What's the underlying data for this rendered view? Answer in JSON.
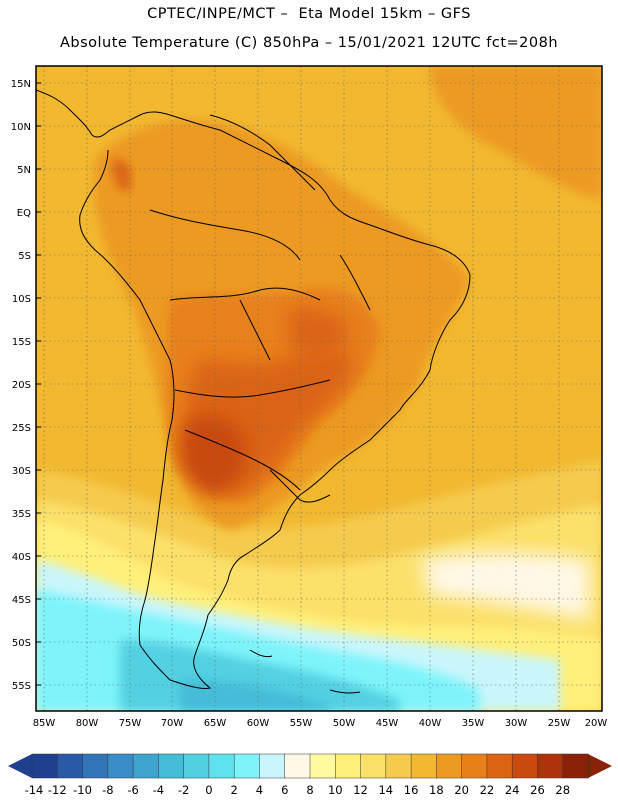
{
  "title": {
    "line1": "CPTEC/INPE/MCT –  Eta Model 15km – GFS",
    "line2": "Absolute Temperature (C) 850hPa – 15/01/2021 12UTC fct=208h"
  },
  "axes": {
    "lat_labels": [
      "15N",
      "10N",
      "5N",
      "EQ",
      "5S",
      "10S",
      "15S",
      "20S",
      "25S",
      "30S",
      "35S",
      "40S",
      "45S",
      "50S",
      "55S"
    ],
    "lon_labels": [
      "85W",
      "80W",
      "75W",
      "70W",
      "65W",
      "60W",
      "55W",
      "50W",
      "45W",
      "40W",
      "35W",
      "30W",
      "25W",
      "20W"
    ]
  },
  "colorbar": {
    "labels": [
      "-14",
      "-12",
      "-10",
      "-8",
      "-6",
      "-4",
      "-2",
      "0",
      "2",
      "4",
      "6",
      "8",
      "10",
      "12",
      "14",
      "16",
      "18",
      "20",
      "22",
      "24",
      "26",
      "28"
    ],
    "colors": [
      "#1f3f8f",
      "#2a5aa6",
      "#3274b8",
      "#3a8cc6",
      "#3fa4cf",
      "#45bcd8",
      "#52d0e2",
      "#5fe2ee",
      "#7ef4fa",
      "#c9f6fb",
      "#fff8e6",
      "#fffa9e",
      "#fff07a",
      "#fbe06a",
      "#f5cb4e",
      "#f2b830",
      "#ec9a22",
      "#e8801a",
      "#db6412",
      "#c84a0e",
      "#ad340a",
      "#8a2208"
    ]
  }
}
